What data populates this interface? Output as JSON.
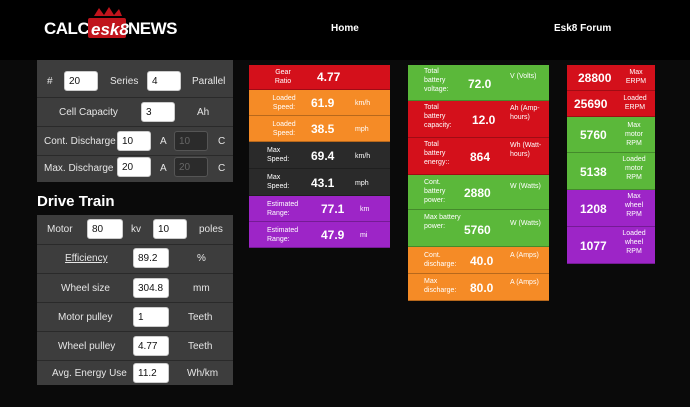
{
  "header": {
    "logo_text": "CALC ESK8 NEWS",
    "nav_home": "Home",
    "nav_forum": "Esk8 Forum"
  },
  "battery": {
    "hash": "#",
    "series_value": "20",
    "series_label": "Series",
    "parallel_value": "4",
    "parallel_label": "Parallel",
    "cell_capacity_label": "Cell Capacity",
    "cell_capacity_value": "3",
    "cell_capacity_unit": "Ah",
    "cont_discharge_label": "Cont. Discharge",
    "cont_discharge_value": "10",
    "cont_discharge_unit": "A",
    "cont_discharge_c_value": "10",
    "cont_discharge_c_unit": "C",
    "max_discharge_label": "Max. Discharge",
    "max_discharge_value": "20",
    "max_discharge_unit": "A",
    "max_discharge_c_value": "20",
    "max_discharge_c_unit": "C"
  },
  "drivetrain": {
    "title": "Drive Train",
    "motor_label": "Motor",
    "motor_kv_value": "80",
    "kv_label": "kv",
    "poles_value": "10",
    "poles_label": "poles",
    "efficiency_label": "Efficiency",
    "efficiency_value": "89.2",
    "efficiency_unit": "%",
    "wheel_size_label": "Wheel size",
    "wheel_size_value": "304.8",
    "wheel_size_unit": "mm",
    "motor_pulley_label": "Motor pulley",
    "motor_pulley_value": "1",
    "motor_pulley_unit": "Teeth",
    "wheel_pulley_label": "Wheel pulley",
    "wheel_pulley_value": "4.77",
    "wheel_pulley_unit": "Teeth",
    "energy_label": "Avg. Energy Use",
    "energy_value": "11.2",
    "energy_unit": "Wh/km"
  },
  "col1": [
    {
      "label": "Gear Ratio",
      "value": "4.77",
      "unit": "",
      "color": "#d4101b"
    },
    {
      "label": "Loaded Speed:",
      "value": "61.9",
      "unit": "km/h",
      "color": "#f58b26"
    },
    {
      "label": "Loaded Speed:",
      "value": "38.5",
      "unit": "mph",
      "color": "#f58b26"
    },
    {
      "label": "Max Speed:",
      "value": "69.4",
      "unit": "km/h",
      "color": "#2a2a2a"
    },
    {
      "label": "Max Speed:",
      "value": "43.1",
      "unit": "mph",
      "color": "#2a2a2a"
    },
    {
      "label": "Estimated Range:",
      "value": "77.1",
      "unit": "km",
      "color": "#9d25c7"
    },
    {
      "label": "Estimated Range:",
      "value": "47.9",
      "unit": "mi",
      "color": "#9d25c7"
    }
  ],
  "col2": [
    {
      "label": "Total battery voltage:",
      "value": "72.0",
      "unit": "V (Volts)",
      "color": "#5bb83a"
    },
    {
      "label": "Total battery capacity:",
      "value": "12.0",
      "unit": "Ah (Amp-hours)",
      "color": "#d4101b"
    },
    {
      "label": "Total battery energy::",
      "value": "864",
      "unit": "Wh (Watt-hours)",
      "color": "#d4101b"
    },
    {
      "label": "Cont. battery power:",
      "value": "2880",
      "unit": "W (Watts)",
      "color": "#5bb83a"
    },
    {
      "label": "Max battery power:",
      "value": "5760",
      "unit": "W (Watts)",
      "color": "#5bb83a"
    },
    {
      "label": "Cont. discharge:",
      "value": "40.0",
      "unit": "A (Amps)",
      "color": "#f58b26"
    },
    {
      "label": "Max discharge:",
      "value": "80.0",
      "unit": "A (Amps)",
      "color": "#f58b26"
    }
  ],
  "col3": [
    {
      "label": "Max ERPM",
      "value": "28800",
      "color": "#d4101b"
    },
    {
      "label": "Loaded ERPM",
      "value": "25690",
      "color": "#d4101b"
    },
    {
      "label": "Max motor RPM",
      "value": "5760",
      "color": "#5bb83a"
    },
    {
      "label": "Loaded motor RPM",
      "value": "5138",
      "color": "#5bb83a"
    },
    {
      "label": "Max wheel RPM",
      "value": "1208",
      "color": "#9d25c7"
    },
    {
      "label": "Loaded wheel RPM",
      "value": "1077",
      "color": "#9d25c7"
    }
  ]
}
